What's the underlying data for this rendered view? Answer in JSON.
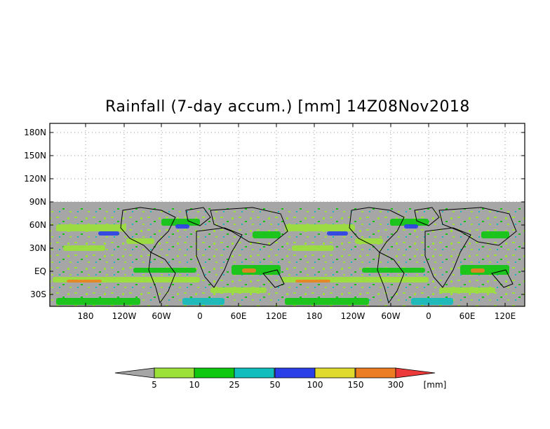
{
  "map": {
    "title": "Rainfall (7-day accum.) [mm] 14Z08Nov2018",
    "colors": {
      "background_land": "#a6a6a6",
      "no_data": "#a6a6a6",
      "frame": "#000000",
      "grid": "#9a9a9a"
    },
    "y_ticks": [
      "180N",
      "150N",
      "120N",
      "90N",
      "60N",
      "30N",
      "EQ",
      "30S"
    ],
    "x_ticks": [
      "180",
      "120W",
      "60W",
      "0",
      "60E",
      "120E",
      "180",
      "120W",
      "60W",
      "0",
      "60E",
      "120E"
    ]
  },
  "colorbar": {
    "unit": "[mm]",
    "thresholds": [
      "5",
      "10",
      "25",
      "50",
      "100",
      "150",
      "300"
    ],
    "colors": [
      "#a6a6a6",
      "#9be13a",
      "#10c810",
      "#12bdbd",
      "#2a3fe8",
      "#e0d92e",
      "#ec7d22",
      "#ec3a3a"
    ]
  }
}
